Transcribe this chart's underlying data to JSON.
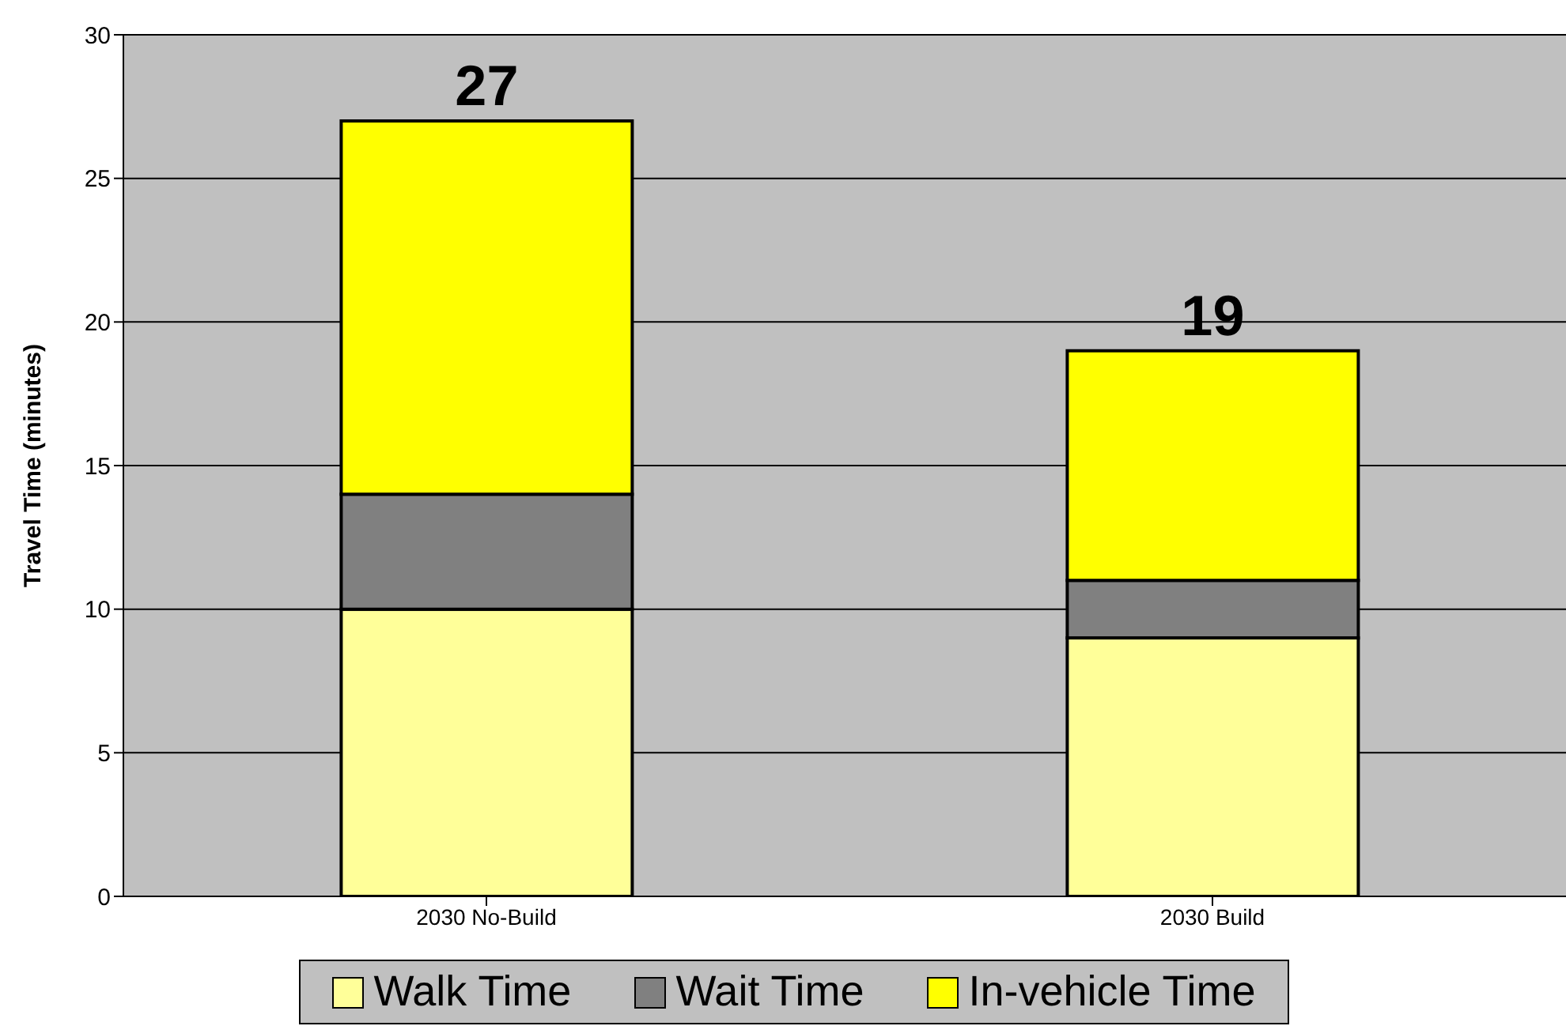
{
  "chart_data": {
    "type": "bar",
    "stacked": true,
    "ylabel": "Travel Time (minutes)",
    "categories": [
      "2030 No-Build",
      "2030 Build"
    ],
    "series": [
      {
        "name": "Walk Time",
        "color": "#ffff99",
        "values": [
          10,
          9
        ]
      },
      {
        "name": "Wait Time",
        "color": "#808080",
        "values": [
          4,
          2
        ]
      },
      {
        "name": "In-vehicle Time",
        "color": "#ffff00",
        "values": [
          13,
          8
        ]
      }
    ],
    "totals": [
      "27",
      "19"
    ],
    "ylim": [
      0,
      30
    ],
    "yticks": [
      0,
      5,
      10,
      15,
      20,
      25,
      30
    ],
    "grid": "y",
    "legend": "bottom"
  }
}
